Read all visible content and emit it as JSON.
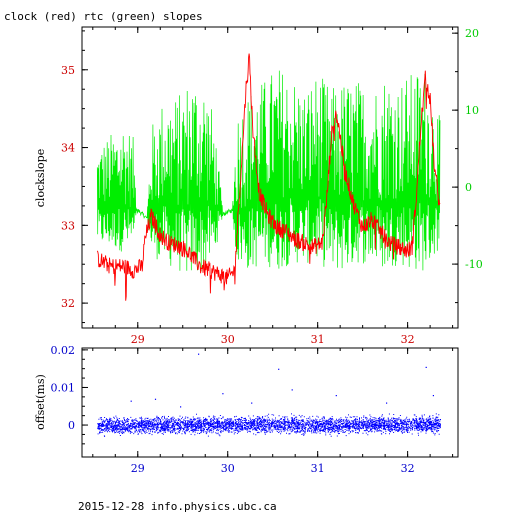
{
  "title": "clock (red) rtc (green) slopes",
  "footer": "2015-12-28 info.physics.ubc.ca",
  "colors": {
    "clock": "#ff0000",
    "rtc": "#00ee00",
    "offset": "#0000ff",
    "axis_red": "#cc0000",
    "axis_green": "#00cc00",
    "axis_blue": "#0000cc"
  },
  "chart_data": [
    {
      "type": "line",
      "title": "clock (red) rtc (green) slopes",
      "xlabel": "",
      "ylabel": "clockslope",
      "xlim": [
        28.38,
        32.56
      ],
      "ylim": [
        31.68,
        35.55
      ],
      "y2lim": [
        -18.3,
        20.8
      ],
      "x_ticks": [
        "29",
        "30",
        "31",
        "32"
      ],
      "y_ticks": [
        "32",
        "33",
        "34",
        "35"
      ],
      "y2_ticks": [
        "-10",
        "0",
        "10",
        "20"
      ],
      "grid": false,
      "series": [
        {
          "name": "clock",
          "axis": "left",
          "baseline": [
            [
              28.55,
              32.55
            ],
            [
              28.7,
              32.45
            ],
            [
              28.85,
              32.45
            ],
            [
              28.95,
              32.4
            ],
            [
              29.05,
              32.45
            ],
            [
              29.08,
              32.8
            ],
            [
              29.15,
              33.1
            ],
            [
              29.25,
              32.85
            ],
            [
              29.35,
              32.75
            ],
            [
              29.45,
              32.72
            ],
            [
              29.55,
              32.65
            ],
            [
              29.62,
              32.55
            ],
            [
              29.7,
              32.45
            ],
            [
              29.8,
              32.4
            ],
            [
              29.9,
              32.35
            ],
            [
              30.0,
              32.3
            ],
            [
              30.08,
              32.4
            ],
            [
              30.12,
              33.2
            ],
            [
              30.16,
              33.9
            ],
            [
              30.2,
              34.7
            ],
            [
              30.24,
              35.15
            ],
            [
              30.28,
              34.2
            ],
            [
              30.35,
              33.4
            ],
            [
              30.45,
              33.1
            ],
            [
              30.55,
              32.95
            ],
            [
              30.65,
              32.9
            ],
            [
              30.75,
              32.8
            ],
            [
              30.85,
              32.75
            ],
            [
              30.95,
              32.7
            ],
            [
              31.05,
              32.75
            ],
            [
              31.1,
              33.3
            ],
            [
              31.15,
              34.1
            ],
            [
              31.2,
              34.45
            ],
            [
              31.24,
              34.2
            ],
            [
              31.3,
              33.7
            ],
            [
              31.4,
              33.25
            ],
            [
              31.5,
              32.95
            ],
            [
              31.6,
              33.05
            ],
            [
              31.7,
              32.9
            ],
            [
              31.8,
              32.75
            ],
            [
              31.9,
              32.7
            ],
            [
              32.0,
              32.65
            ],
            [
              32.05,
              32.7
            ],
            [
              32.1,
              33.4
            ],
            [
              32.15,
              34.3
            ],
            [
              32.2,
              34.9
            ],
            [
              32.25,
              34.6
            ],
            [
              32.3,
              33.7
            ],
            [
              32.36,
              33.2
            ]
          ]
        },
        {
          "name": "rtc",
          "axis": "right",
          "envelope": [
            [
              28.55,
              -7.5,
              5.5
            ],
            [
              28.7,
              -8.0,
              7.0
            ],
            [
              28.85,
              -8.5,
              9.0
            ],
            [
              28.95,
              -8.0,
              6.5
            ],
            [
              29.0,
              -3.0,
              -3.0
            ],
            [
              29.05,
              -3.5,
              -3.5
            ],
            [
              29.1,
              -4.0,
              -4.0
            ],
            [
              29.15,
              -9.0,
              8.0
            ],
            [
              29.3,
              -10.0,
              12.0
            ],
            [
              29.45,
              -11.0,
              12.0
            ],
            [
              29.6,
              -12.0,
              15.0
            ],
            [
              29.75,
              -11.0,
              14.0
            ],
            [
              29.85,
              -9.0,
              9.0
            ],
            [
              29.95,
              -3.5,
              -3.5
            ],
            [
              30.05,
              -3.0,
              -3.0
            ],
            [
              30.1,
              -10.0,
              10.0
            ],
            [
              30.25,
              -11.0,
              13.0
            ],
            [
              30.4,
              -10.0,
              14.0
            ],
            [
              30.55,
              -11.0,
              16.0
            ],
            [
              30.7,
              -10.0,
              15.0
            ],
            [
              30.85,
              -10.0,
              13.0
            ],
            [
              31.0,
              -10.0,
              15.0
            ],
            [
              31.15,
              -11.0,
              13.0
            ],
            [
              31.3,
              -11.0,
              14.0
            ],
            [
              31.45,
              -10.0,
              14.0
            ],
            [
              31.6,
              -10.0,
              13.0
            ],
            [
              31.75,
              -11.0,
              15.0
            ],
            [
              31.9,
              -10.0,
              14.0
            ],
            [
              32.05,
              -11.0,
              15.0
            ],
            [
              32.2,
              -11.0,
              16.0
            ],
            [
              32.36,
              -8.0,
              9.0
            ]
          ]
        }
      ]
    },
    {
      "type": "scatter",
      "title": "",
      "xlabel": "",
      "ylabel": "offset(ms)",
      "xlim": [
        28.38,
        32.56
      ],
      "ylim": [
        -0.0085,
        0.0205
      ],
      "x_ticks": [
        "29",
        "30",
        "31",
        "32"
      ],
      "y_ticks": [
        "0",
        "0.01",
        "0.02"
      ],
      "grid": false,
      "series": [
        {
          "name": "offset",
          "band": [
            [
              28.55,
              0.0,
              0.003
            ],
            [
              29.0,
              0.0,
              0.003
            ],
            [
              29.5,
              0.0003,
              0.0033
            ],
            [
              30.0,
              0.0002,
              0.0032
            ],
            [
              30.5,
              0.0004,
              0.0036
            ],
            [
              31.0,
              0.0,
              0.003
            ],
            [
              31.5,
              0.0003,
              0.0033
            ],
            [
              32.0,
              0.0002,
              0.0032
            ],
            [
              32.36,
              0.0003,
              0.0038
            ]
          ],
          "outliers": [
            [
              29.67,
              0.019
            ],
            [
              30.56,
              0.015
            ],
            [
              32.2,
              0.0155
            ],
            [
              30.71,
              0.0095
            ],
            [
              29.94,
              0.0085
            ],
            [
              31.2,
              0.008
            ],
            [
              32.28,
              0.008
            ],
            [
              29.19,
              0.007
            ],
            [
              28.92,
              0.0065
            ],
            [
              31.76,
              0.006
            ],
            [
              30.26,
              0.006
            ],
            [
              29.47,
              0.005
            ]
          ]
        }
      ]
    }
  ]
}
